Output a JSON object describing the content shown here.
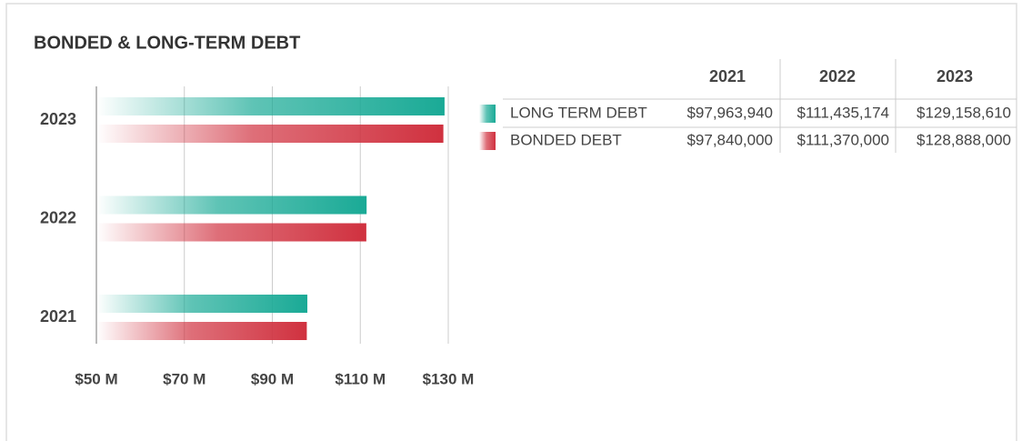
{
  "chart_data": {
    "type": "bar",
    "orientation": "horizontal",
    "title": "BONDED & LONG-TERM DEBT",
    "categories": [
      "2021",
      "2022",
      "2023"
    ],
    "series": [
      {
        "name": "LONG TERM DEBT",
        "color": "#1aaa96",
        "values": [
          97.96394,
          111.435174,
          129.15861
        ],
        "value_labels": [
          "$97,963,940",
          "$111,435,174",
          "$129,158,610"
        ]
      },
      {
        "name": "BONDED DEBT",
        "color": "#d0313f",
        "values": [
          97.84,
          111.37,
          128.888
        ],
        "value_labels": [
          "$97,840,000",
          "$111,370,000",
          "$128,888,000"
        ]
      }
    ],
    "xlim": [
      50,
      130
    ],
    "xticks": [
      {
        "value": 50,
        "label": "$50 M"
      },
      {
        "value": 70,
        "label": "$70 M"
      },
      {
        "value": 90,
        "label": "$90 M"
      },
      {
        "value": 110,
        "label": "$110 M"
      },
      {
        "value": 130,
        "label": "$130 M"
      }
    ],
    "grid": true
  }
}
